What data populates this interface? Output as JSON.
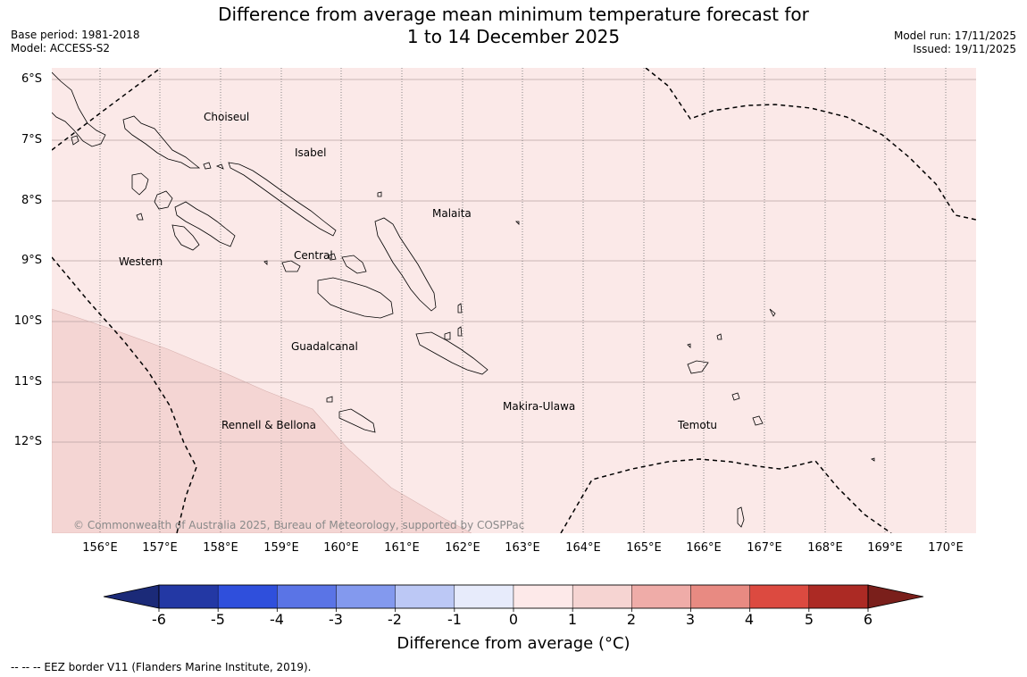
{
  "header": {
    "title_line1": "Difference from average mean minimum temperature forecast for",
    "title_line2": "1 to 14 December 2025",
    "base_period": "Base period: 1981-2018",
    "model": "Model: ACCESS-S2",
    "model_run": "Model run: 17/11/2025",
    "issued": "Issued: 19/11/2025"
  },
  "map": {
    "latitude_labels": [
      "6°S",
      "7°S",
      "8°S",
      "9°S",
      "10°S",
      "11°S",
      "12°S"
    ],
    "longitude_labels": [
      "156°E",
      "157°E",
      "158°E",
      "159°E",
      "160°E",
      "161°E",
      "162°E",
      "163°E",
      "164°E",
      "165°E",
      "166°E",
      "167°E",
      "168°E",
      "169°E",
      "170°E"
    ],
    "regions": [
      "Choiseul",
      "Isabel",
      "Malaita",
      "Western",
      "Central",
      "Guadalcanal",
      "Makira-Ulawa",
      "Rennell & Bellona",
      "Temotu"
    ],
    "copyright": "© Commonwealth of Australia 2025, Bureau of Meteorology, supported by COSPPac",
    "colors": {
      "anomaly_0_1": "#fbe9e8",
      "anomaly_1_2": "#f4d5d3",
      "border": "#000000"
    }
  },
  "colorbar": {
    "ticks": [
      "-6",
      "-5",
      "-4",
      "-3",
      "-2",
      "-1",
      "0",
      "1",
      "2",
      "3",
      "4",
      "5",
      "6"
    ],
    "colors": [
      "#2338a4",
      "#2f4fdc",
      "#5a74e6",
      "#8399ee",
      "#bcc8f5",
      "#e7ebfb",
      "#fde9e9",
      "#f6d4d2",
      "#efaca8",
      "#e88a82",
      "#dc4a40",
      "#ac2a24"
    ],
    "low_extend_color": "#1b2a78",
    "high_extend_color": "#7a1f1b",
    "label": "Difference from average (°C)"
  },
  "footer": {
    "legend": "--  --  -- EEZ border V11 (Flanders Marine Institute, 2019)."
  }
}
